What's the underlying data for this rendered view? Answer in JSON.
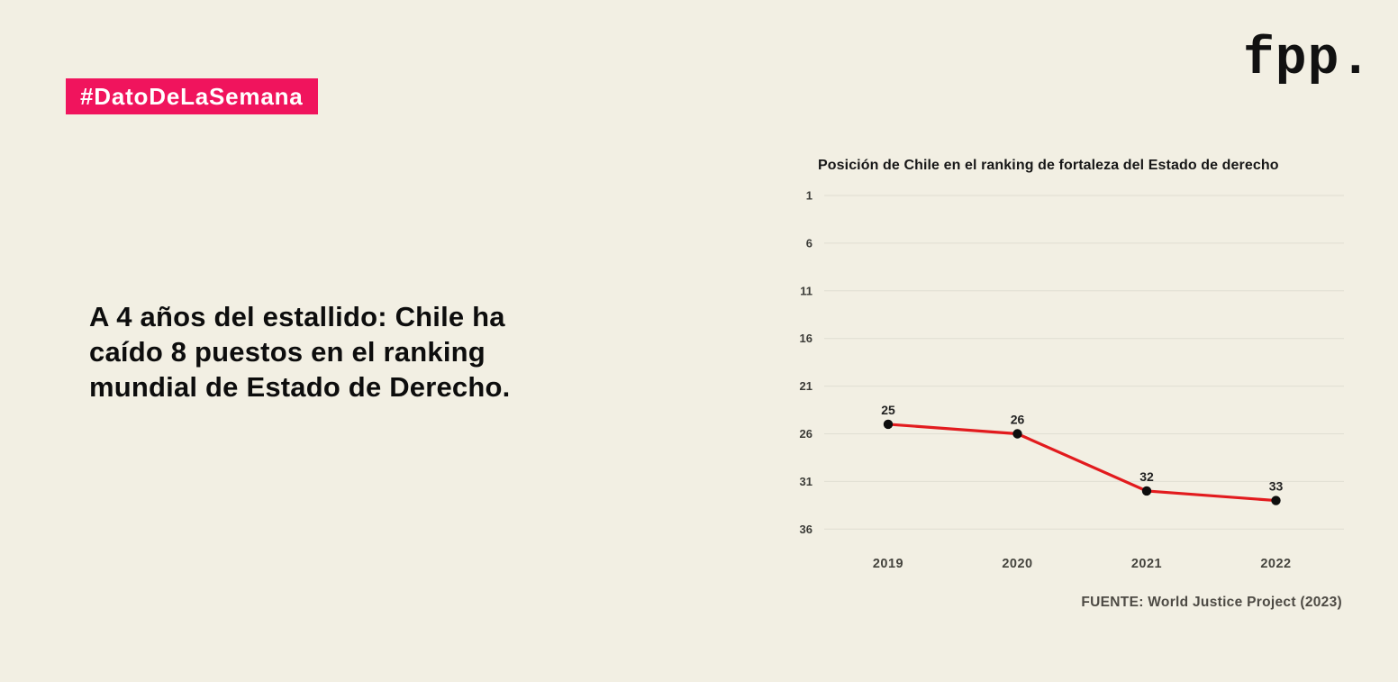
{
  "page": {
    "background_color": "#F2EFE3"
  },
  "badge": {
    "label": "#DatoDeLaSemana",
    "background_color": "#F0145D",
    "text_color": "#FFFFFF"
  },
  "logo": {
    "text": "fpp."
  },
  "headline": {
    "full_text": "A 4 años del estallido: Chile ha caído 8 puestos en el ranking mundial de Estado de Derecho.",
    "lines": [
      "A 4 años del estallido: Chile ha",
      "caído 8 puestos en el ranking",
      "mundial de Estado de Derecho."
    ]
  },
  "chart": {
    "title": "Posición de Chile en el ranking de fortaleza del Estado de derecho",
    "source": "FUENTE: World Justice Project (2023)"
  },
  "chart_data": {
    "type": "line",
    "title": "Posición de Chile en el ranking de fortaleza del Estado de derecho",
    "categories": [
      "2019",
      "2020",
      "2021",
      "2022"
    ],
    "values": [
      25,
      26,
      32,
      33
    ],
    "data_labels": [
      "25",
      "26",
      "32",
      "33"
    ],
    "y_ticks": [
      1,
      6,
      11,
      16,
      21,
      26,
      31,
      36
    ],
    "ylim": [
      1,
      36
    ],
    "y_axis_inverted": true,
    "xlabel": "",
    "ylabel": "",
    "grid": true,
    "legend_position": "none",
    "line_color": "#E21B1E",
    "marker_color": "#0E0E0E",
    "grid_color": "#E0DED2",
    "source": "FUENTE: World Justice Project (2023)"
  }
}
